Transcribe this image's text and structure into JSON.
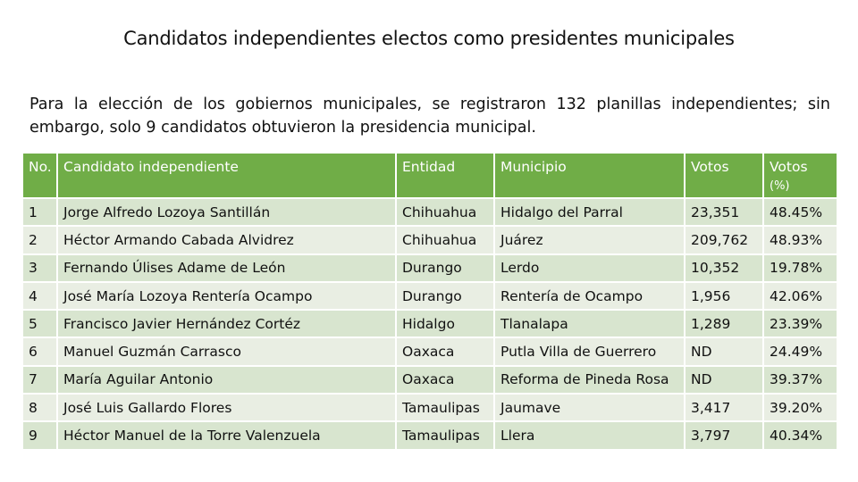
{
  "title": "Candidatos independientes electos como presidentes municipales",
  "intro": "Para la elección de los gobiernos municipales, se registraron 132 planillas independientes; sin embargo, solo 9 candidatos obtuvieron la presidencia municipal.",
  "table": {
    "headers": {
      "no": "No.",
      "candidato": "Candidato independiente",
      "entidad": "Entidad",
      "municipio": "Municipio",
      "votos": "Votos",
      "votos_pct": "Votos",
      "votos_pct_unit": "(%)"
    },
    "rows": [
      {
        "no": "1",
        "candidato": "Jorge Alfredo Lozoya Santillán",
        "entidad": "Chihuahua",
        "municipio": "Hidalgo del Parral",
        "votos": "23,351",
        "pct": "48.45%"
      },
      {
        "no": "2",
        "candidato": "Héctor Armando Cabada Alvidrez",
        "entidad": "Chihuahua",
        "municipio": "Juárez",
        "votos": "209,762",
        "pct": "48.93%"
      },
      {
        "no": "3",
        "candidato": "Fernando Úlises Adame de León",
        "entidad": "Durango",
        "municipio": "Lerdo",
        "votos": "10,352",
        "pct": "19.78%"
      },
      {
        "no": "4",
        "candidato": "José María Lozoya Rentería Ocampo",
        "entidad": "Durango",
        "municipio": "Rentería de Ocampo",
        "votos": "1,956",
        "pct": "42.06%"
      },
      {
        "no": "5",
        "candidato": "Francisco Javier Hernández Cortéz",
        "entidad": "Hidalgo",
        "municipio": "Tlanalapa",
        "votos": "1,289",
        "pct": "23.39%"
      },
      {
        "no": "6",
        "candidato": "Manuel Guzmán Carrasco",
        "entidad": "Oaxaca",
        "municipio": "Putla Villa de Guerrero",
        "votos": "ND",
        "pct": "24.49%"
      },
      {
        "no": "7",
        "candidato": "María Aguilar Antonio",
        "entidad": "Oaxaca",
        "municipio": "Reforma de Pineda Rosa",
        "votos": "ND",
        "pct": "39.37%"
      },
      {
        "no": "8",
        "candidato": "José Luis Gallardo Flores",
        "entidad": "Tamaulipas",
        "municipio": "Jaumave",
        "votos": "3,417",
        "pct": "39.20%"
      },
      {
        "no": "9",
        "candidato": "Héctor Manuel de la Torre Valenzuela",
        "entidad": "Tamaulipas",
        "municipio": "Llera",
        "votos": "3,797",
        "pct": "40.34%"
      }
    ]
  },
  "colors": {
    "header_bg": "#70ad47",
    "row_light": "#e9eee3",
    "row_band": "#d8e5cf"
  }
}
